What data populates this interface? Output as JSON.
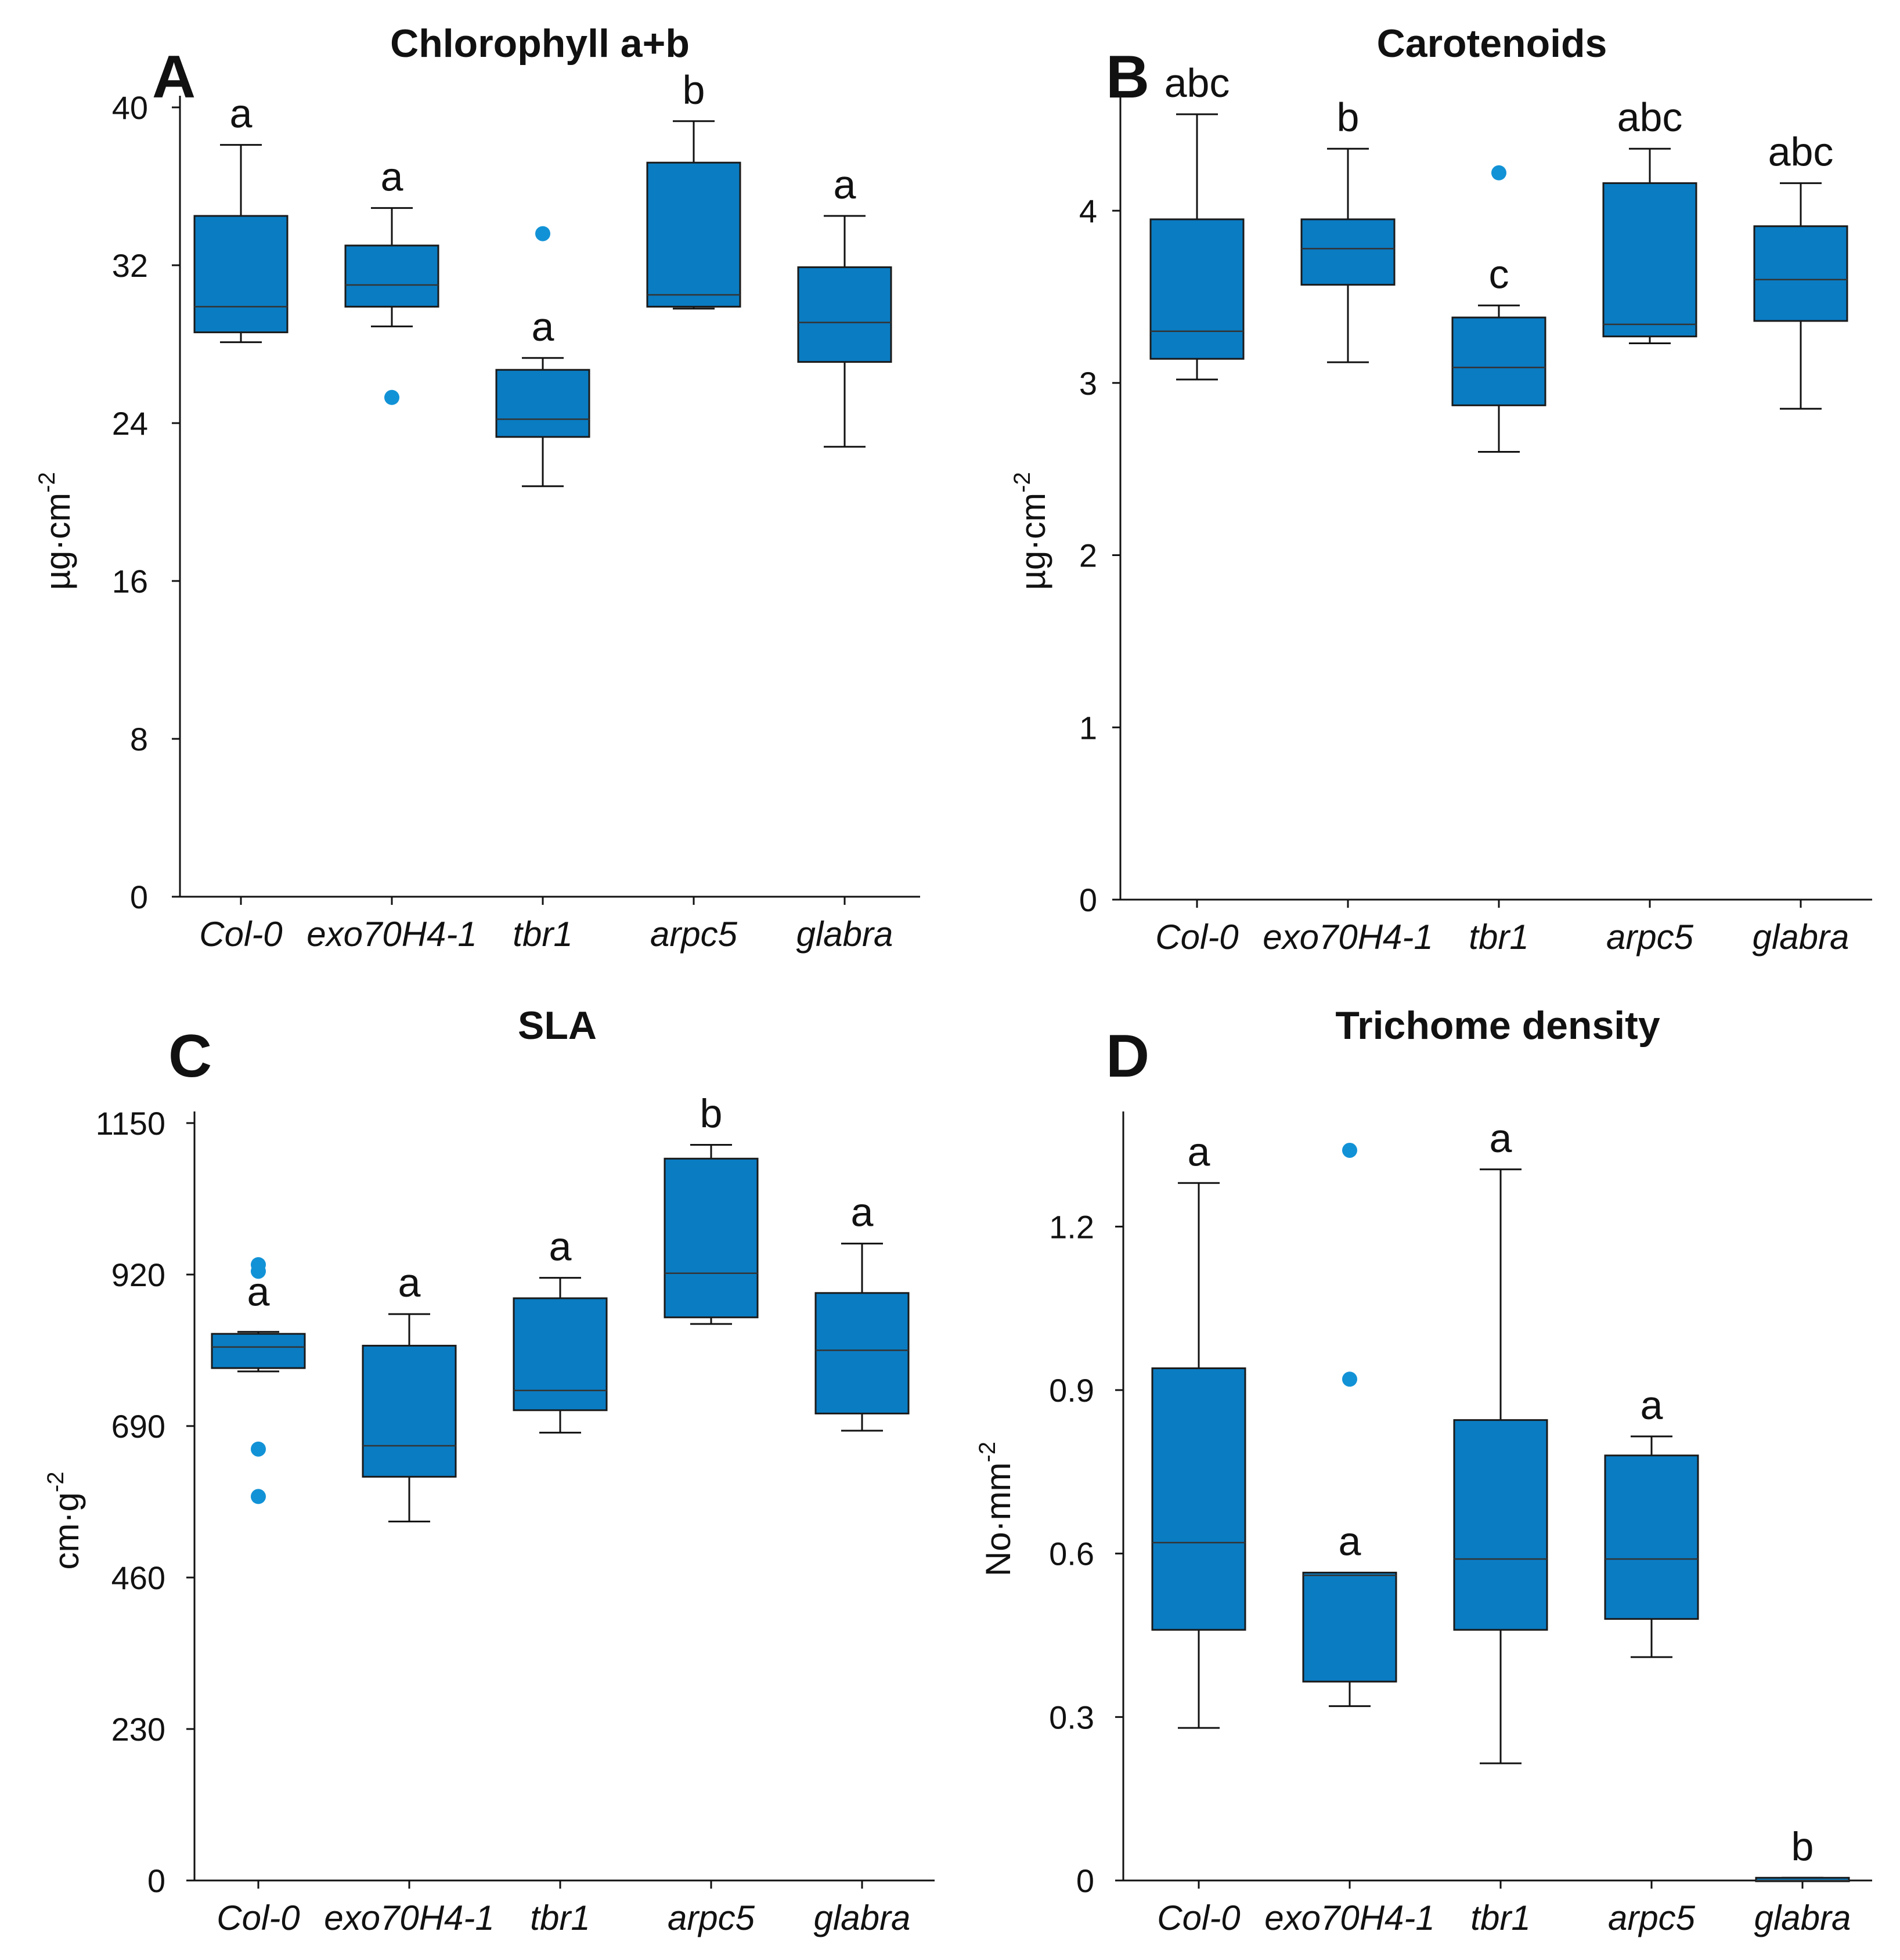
{
  "colors": {
    "box_fill": "#0a7cc2",
    "outlier": "#1292d6"
  },
  "chart_data": [
    {
      "panel": "A",
      "type": "box",
      "title": "Chlorophyll a+b",
      "ylabel": "µg·cm",
      "ylabel_sup": "-2",
      "ylim": [
        0,
        40
      ],
      "yticks": [
        0,
        8,
        16,
        24,
        32,
        40
      ],
      "categories": [
        "Col-0",
        "exo70H4-1",
        "tbr1",
        "arpc5",
        "glabra"
      ],
      "boxes": [
        {
          "min": 28.1,
          "q1": 28.6,
          "median": 29.9,
          "q3": 34.5,
          "max": 38.1,
          "outliers": [],
          "sig": "a"
        },
        {
          "min": 28.9,
          "q1": 29.9,
          "median": 31.0,
          "q3": 33.0,
          "max": 34.9,
          "outliers": [
            25.3
          ],
          "sig": "a"
        },
        {
          "min": 20.8,
          "q1": 23.3,
          "median": 24.2,
          "q3": 26.7,
          "max": 27.3,
          "outliers": [
            33.6
          ],
          "sig": "a"
        },
        {
          "min": 29.8,
          "q1": 29.9,
          "median": 30.5,
          "q3": 37.2,
          "max": 39.3,
          "outliers": [],
          "sig": "b"
        },
        {
          "min": 22.8,
          "q1": 27.1,
          "median": 29.1,
          "q3": 31.9,
          "max": 34.5,
          "outliers": [],
          "sig": "a"
        }
      ]
    },
    {
      "panel": "B",
      "type": "box",
      "title": "Carotenoids",
      "ylabel": "µg·cm",
      "ylabel_sup": "-2",
      "ylim": [
        0,
        4.6
      ],
      "yticks": [
        0,
        1,
        2,
        3,
        4
      ],
      "categories": [
        "Col-0",
        "exo70H4-1",
        "tbr1",
        "arpc5",
        "glabra"
      ],
      "boxes": [
        {
          "min": 3.02,
          "q1": 3.14,
          "median": 3.3,
          "q3": 3.95,
          "max": 4.56,
          "outliers": [],
          "sig": "abc"
        },
        {
          "min": 3.12,
          "q1": 3.57,
          "median": 3.78,
          "q3": 3.95,
          "max": 4.36,
          "outliers": [],
          "sig": "b"
        },
        {
          "min": 2.6,
          "q1": 2.87,
          "median": 3.09,
          "q3": 3.38,
          "max": 3.45,
          "outliers": [
            4.22
          ],
          "sig": "c"
        },
        {
          "min": 3.23,
          "q1": 3.27,
          "median": 3.34,
          "q3": 4.16,
          "max": 4.36,
          "outliers": [],
          "sig": "abc"
        },
        {
          "min": 2.85,
          "q1": 3.36,
          "median": 3.6,
          "q3": 3.91,
          "max": 4.16,
          "outliers": [],
          "sig": "abc"
        }
      ]
    },
    {
      "panel": "C",
      "type": "box",
      "title": "SLA",
      "ylabel": "cm·g",
      "ylabel_sup": "-2",
      "ylim": [
        0,
        1150
      ],
      "yticks": [
        0,
        230,
        460,
        690,
        920,
        1150
      ],
      "categories": [
        "Col-0",
        "exo70H4-1",
        "tbr1",
        "arpc5",
        "glabra"
      ],
      "boxes": [
        {
          "min": 773,
          "q1": 778,
          "median": 810,
          "q3": 830,
          "max": 833,
          "outliers": [
            935,
            925,
            655,
            583
          ],
          "sig": "a"
        },
        {
          "min": 545,
          "q1": 613,
          "median": 660,
          "q3": 812,
          "max": 860,
          "outliers": [],
          "sig": "a"
        },
        {
          "min": 680,
          "q1": 714,
          "median": 744,
          "q3": 884,
          "max": 915,
          "outliers": [],
          "sig": "a"
        },
        {
          "min": 845,
          "q1": 855,
          "median": 922,
          "q3": 1096,
          "max": 1117,
          "outliers": [],
          "sig": "b"
        },
        {
          "min": 683,
          "q1": 709,
          "median": 805,
          "q3": 892,
          "max": 967,
          "outliers": [],
          "sig": "a"
        }
      ]
    },
    {
      "panel": "D",
      "type": "box",
      "title": "Trichome density",
      "ylabel": "No·mm",
      "ylabel_sup": "-2",
      "ylim": [
        0,
        1.39
      ],
      "yticks": [
        0,
        0.3,
        0.6,
        0.9,
        1.2
      ],
      "ytick_labels": [
        "0",
        "0.3",
        "0.6",
        "0.9",
        "1.2"
      ],
      "categories": [
        "Col-0",
        "exo70H4-1",
        "tbr1",
        "arpc5",
        "glabra"
      ],
      "boxes": [
        {
          "min": 0.28,
          "q1": 0.46,
          "median": 0.62,
          "q3": 0.94,
          "max": 1.28,
          "outliers": [],
          "sig": "a"
        },
        {
          "min": 0.32,
          "q1": 0.365,
          "median": 0.56,
          "q3": 0.565,
          "max": 0.565,
          "outliers": [
            1.34,
            0.92
          ],
          "sig": "a"
        },
        {
          "min": 0.215,
          "q1": 0.46,
          "median": 0.59,
          "q3": 0.845,
          "max": 1.305,
          "outliers": [],
          "sig": "a"
        },
        {
          "min": 0.41,
          "q1": 0.48,
          "median": 0.59,
          "q3": 0.78,
          "max": 0.815,
          "outliers": [],
          "sig": "a"
        },
        {
          "min": 0.0,
          "q1": 0.0,
          "median": 0.0,
          "q3": 0.005,
          "max": 0.005,
          "outliers": [],
          "sig": "b"
        }
      ]
    }
  ]
}
